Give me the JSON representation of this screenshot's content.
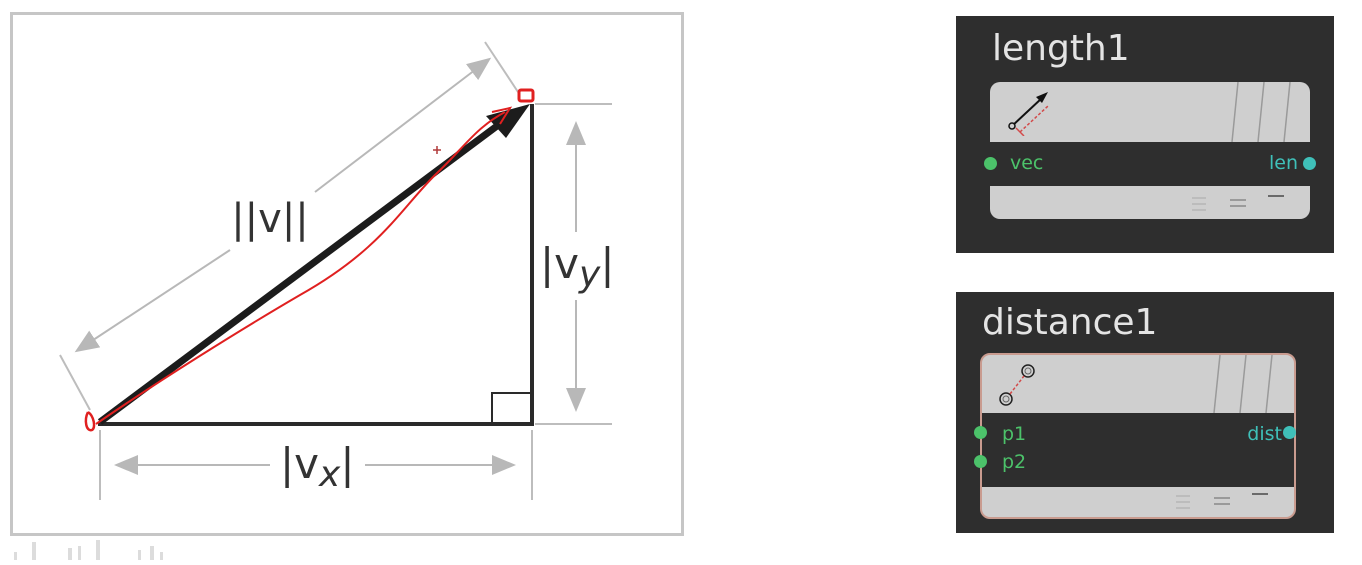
{
  "diagram": {
    "hypotenuse_label": "||v||",
    "vertical_label_bars": "|v",
    "vertical_label_sub": "y",
    "horizontal_label_bars": "|v",
    "horizontal_label_sub": "x"
  },
  "nodes": [
    {
      "title": "length1",
      "inputs": [
        "vec"
      ],
      "outputs": [
        "len"
      ],
      "icon": "vector-length-icon"
    },
    {
      "title": "distance1",
      "inputs": [
        "p1",
        "p2"
      ],
      "outputs": [
        "dist"
      ],
      "icon": "point-distance-icon"
    }
  ],
  "colors": {
    "node_background": "#2e2e2e",
    "node_body": "#cfcfcf",
    "input_port": "#4cc26a",
    "output_port": "#3fc0b9",
    "annotation_red": "#e02020"
  }
}
